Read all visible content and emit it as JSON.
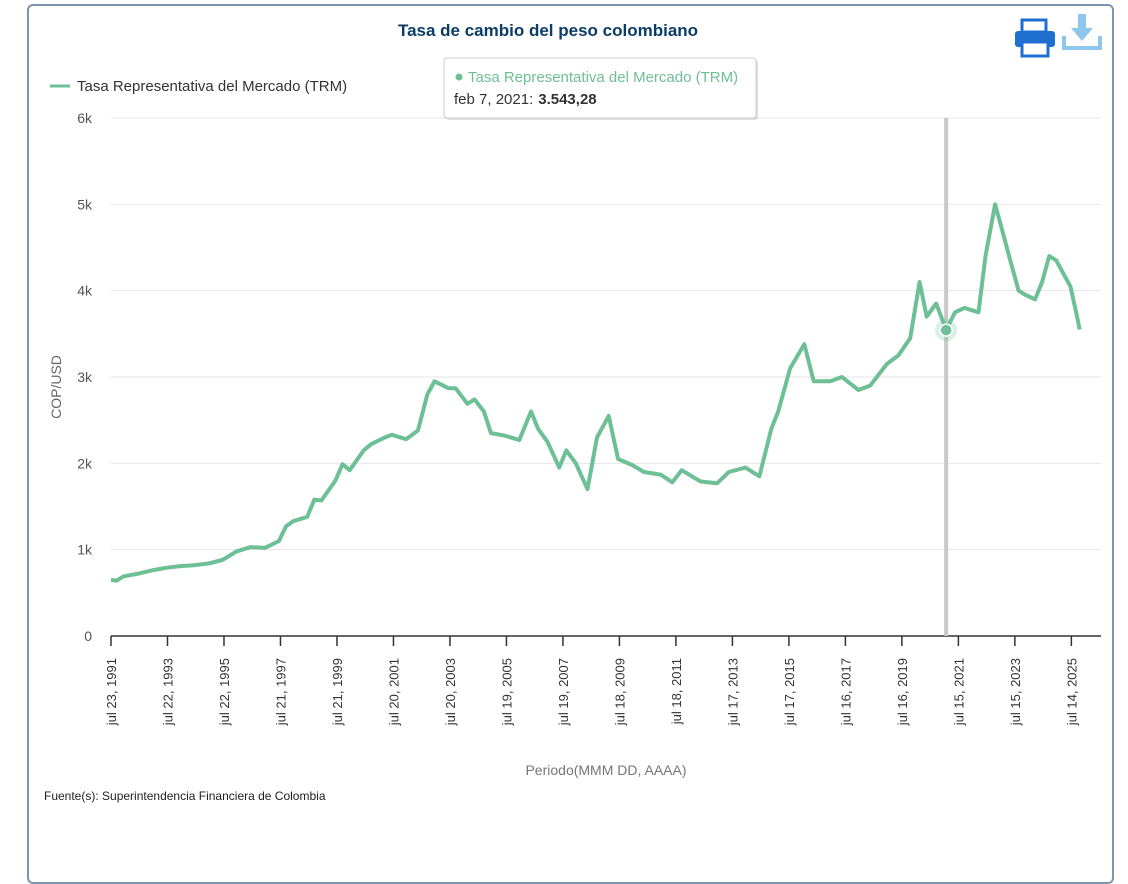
{
  "chart_data": {
    "type": "line",
    "title": "Tasa de cambio del peso colombiano",
    "x_label": "Periodo(MMM DD, AAAA)",
    "y_label": "COP/USD",
    "source": "Fuente(s): Superintendencia Financiera de Colombia",
    "legend": "top-left",
    "grid": true,
    "xlim": [
      "1991-07-23",
      "2026-08-01"
    ],
    "xticks": [
      {
        "value": "1991-07-23",
        "label": "jul 23, 1991"
      },
      {
        "value": "1993-07-22",
        "label": "jul 22, 1993"
      },
      {
        "value": "1995-07-22",
        "label": "jul 22, 1995"
      },
      {
        "value": "1997-07-21",
        "label": "jul 21, 1997"
      },
      {
        "value": "1999-07-21",
        "label": "jul 21, 1999"
      },
      {
        "value": "2001-07-20",
        "label": "jul 20, 2001"
      },
      {
        "value": "2003-07-20",
        "label": "jul 20, 2003"
      },
      {
        "value": "2005-07-19",
        "label": "jul 19, 2005"
      },
      {
        "value": "2007-07-19",
        "label": "jul 19, 2007"
      },
      {
        "value": "2009-07-18",
        "label": "jul 18, 2009"
      },
      {
        "value": "2011-07-18",
        "label": "jul 18, 2011"
      },
      {
        "value": "2013-07-17",
        "label": "jul 17, 2013"
      },
      {
        "value": "2015-07-17",
        "label": "jul 17, 2015"
      },
      {
        "value": "2017-07-16",
        "label": "jul 16, 2017"
      },
      {
        "value": "2019-07-16",
        "label": "jul 16, 2019"
      },
      {
        "value": "2021-07-15",
        "label": "jul 15, 2021"
      },
      {
        "value": "2023-07-15",
        "label": "jul 15, 2023"
      },
      {
        "value": "2025-07-14",
        "label": "jul 14, 2025"
      }
    ],
    "ylim": [
      0,
      6000
    ],
    "yticks": [
      0,
      {
        "value": 1000,
        "label": "1k"
      },
      {
        "value": 2000,
        "label": "2k"
      },
      {
        "value": 3000,
        "label": "3k"
      },
      {
        "value": 4000,
        "label": "4k"
      },
      {
        "value": 5000,
        "label": "5k"
      },
      {
        "value": 6000,
        "label": "6k"
      }
    ],
    "x": [
      "1991-07-23",
      "1991-10-01",
      "1992-01-01",
      "1992-07-01",
      "1993-01-01",
      "1993-07-01",
      "1994-01-01",
      "1994-07-01",
      "1995-01-01",
      "1995-07-01",
      "1996-01-01",
      "1996-07-01",
      "1997-01-01",
      "1997-07-01",
      "1997-10-01",
      "1998-01-01",
      "1998-07-01",
      "1998-10-01",
      "1999-01-01",
      "1999-07-01",
      "1999-10-01",
      "2000-01-01",
      "2000-07-01",
      "2000-10-01",
      "2001-04-01",
      "2001-07-01",
      "2002-01-01",
      "2002-06-01",
      "2002-10-01",
      "2003-01-01",
      "2003-07-01",
      "2003-10-01",
      "2004-03-01",
      "2004-06-01",
      "2004-10-01",
      "2005-01-01",
      "2005-07-01",
      "2006-01-01",
      "2006-06-01",
      "2006-09-01",
      "2007-01-01",
      "2007-06-01",
      "2007-09-01",
      "2008-01-01",
      "2008-06-01",
      "2008-10-01",
      "2009-03-01",
      "2009-07-01",
      "2010-01-01",
      "2010-06-01",
      "2011-01-01",
      "2011-06-01",
      "2011-10-01",
      "2012-06-01",
      "2013-01-01",
      "2013-06-01",
      "2014-01-01",
      "2014-07-01",
      "2014-12-01",
      "2015-03-01",
      "2015-08-01",
      "2016-02-01",
      "2016-06-01",
      "2017-01-01",
      "2017-06-01",
      "2018-01-01",
      "2018-06-01",
      "2019-01-01",
      "2019-06-01",
      "2019-11-01",
      "2020-03-01",
      "2020-06-01",
      "2020-10-01",
      "2021-02-07",
      "2021-06-01",
      "2021-10-01",
      "2022-04-01",
      "2022-07-01",
      "2022-11-01",
      "2023-02-01",
      "2023-05-01",
      "2023-09-01",
      "2023-12-01",
      "2024-04-01",
      "2024-07-01",
      "2024-10-01",
      "2025-01-01",
      "2025-04-01",
      "2025-07-01",
      "2025-09-01",
      "2025-10-30"
    ],
    "series": [
      {
        "name": "Tasa Representativa del Mercado (TRM)",
        "color": "#6dbf96",
        "values": [
          650,
          640,
          690,
          720,
          760,
          790,
          810,
          820,
          840,
          880,
          980,
          1030,
          1020,
          1100,
          1270,
          1330,
          1380,
          1580,
          1570,
          1800,
          1990,
          1920,
          2150,
          2220,
          2300,
          2330,
          2280,
          2380,
          2800,
          2950,
          2870,
          2870,
          2690,
          2740,
          2600,
          2350,
          2320,
          2270,
          2600,
          2400,
          2250,
          1950,
          2150,
          2000,
          1700,
          2300,
          2550,
          2050,
          1980,
          1900,
          1870,
          1780,
          1920,
          1790,
          1770,
          1900,
          1950,
          1850,
          2400,
          2600,
          3100,
          3380,
          2950,
          2950,
          3000,
          2850,
          2900,
          3150,
          3250,
          3450,
          4100,
          3700,
          3850,
          3543.28,
          3750,
          3800,
          3750,
          4400,
          5000,
          4700,
          4400,
          4000,
          3950,
          3900,
          4100,
          4400,
          4350,
          4200,
          4050,
          3800,
          3550
        ]
      }
    ],
    "tooltip": {
      "x": "2021-02-07",
      "date": "feb 7, 2021:",
      "value": 3543.28,
      "value_label": "3.543,28"
    }
  }
}
